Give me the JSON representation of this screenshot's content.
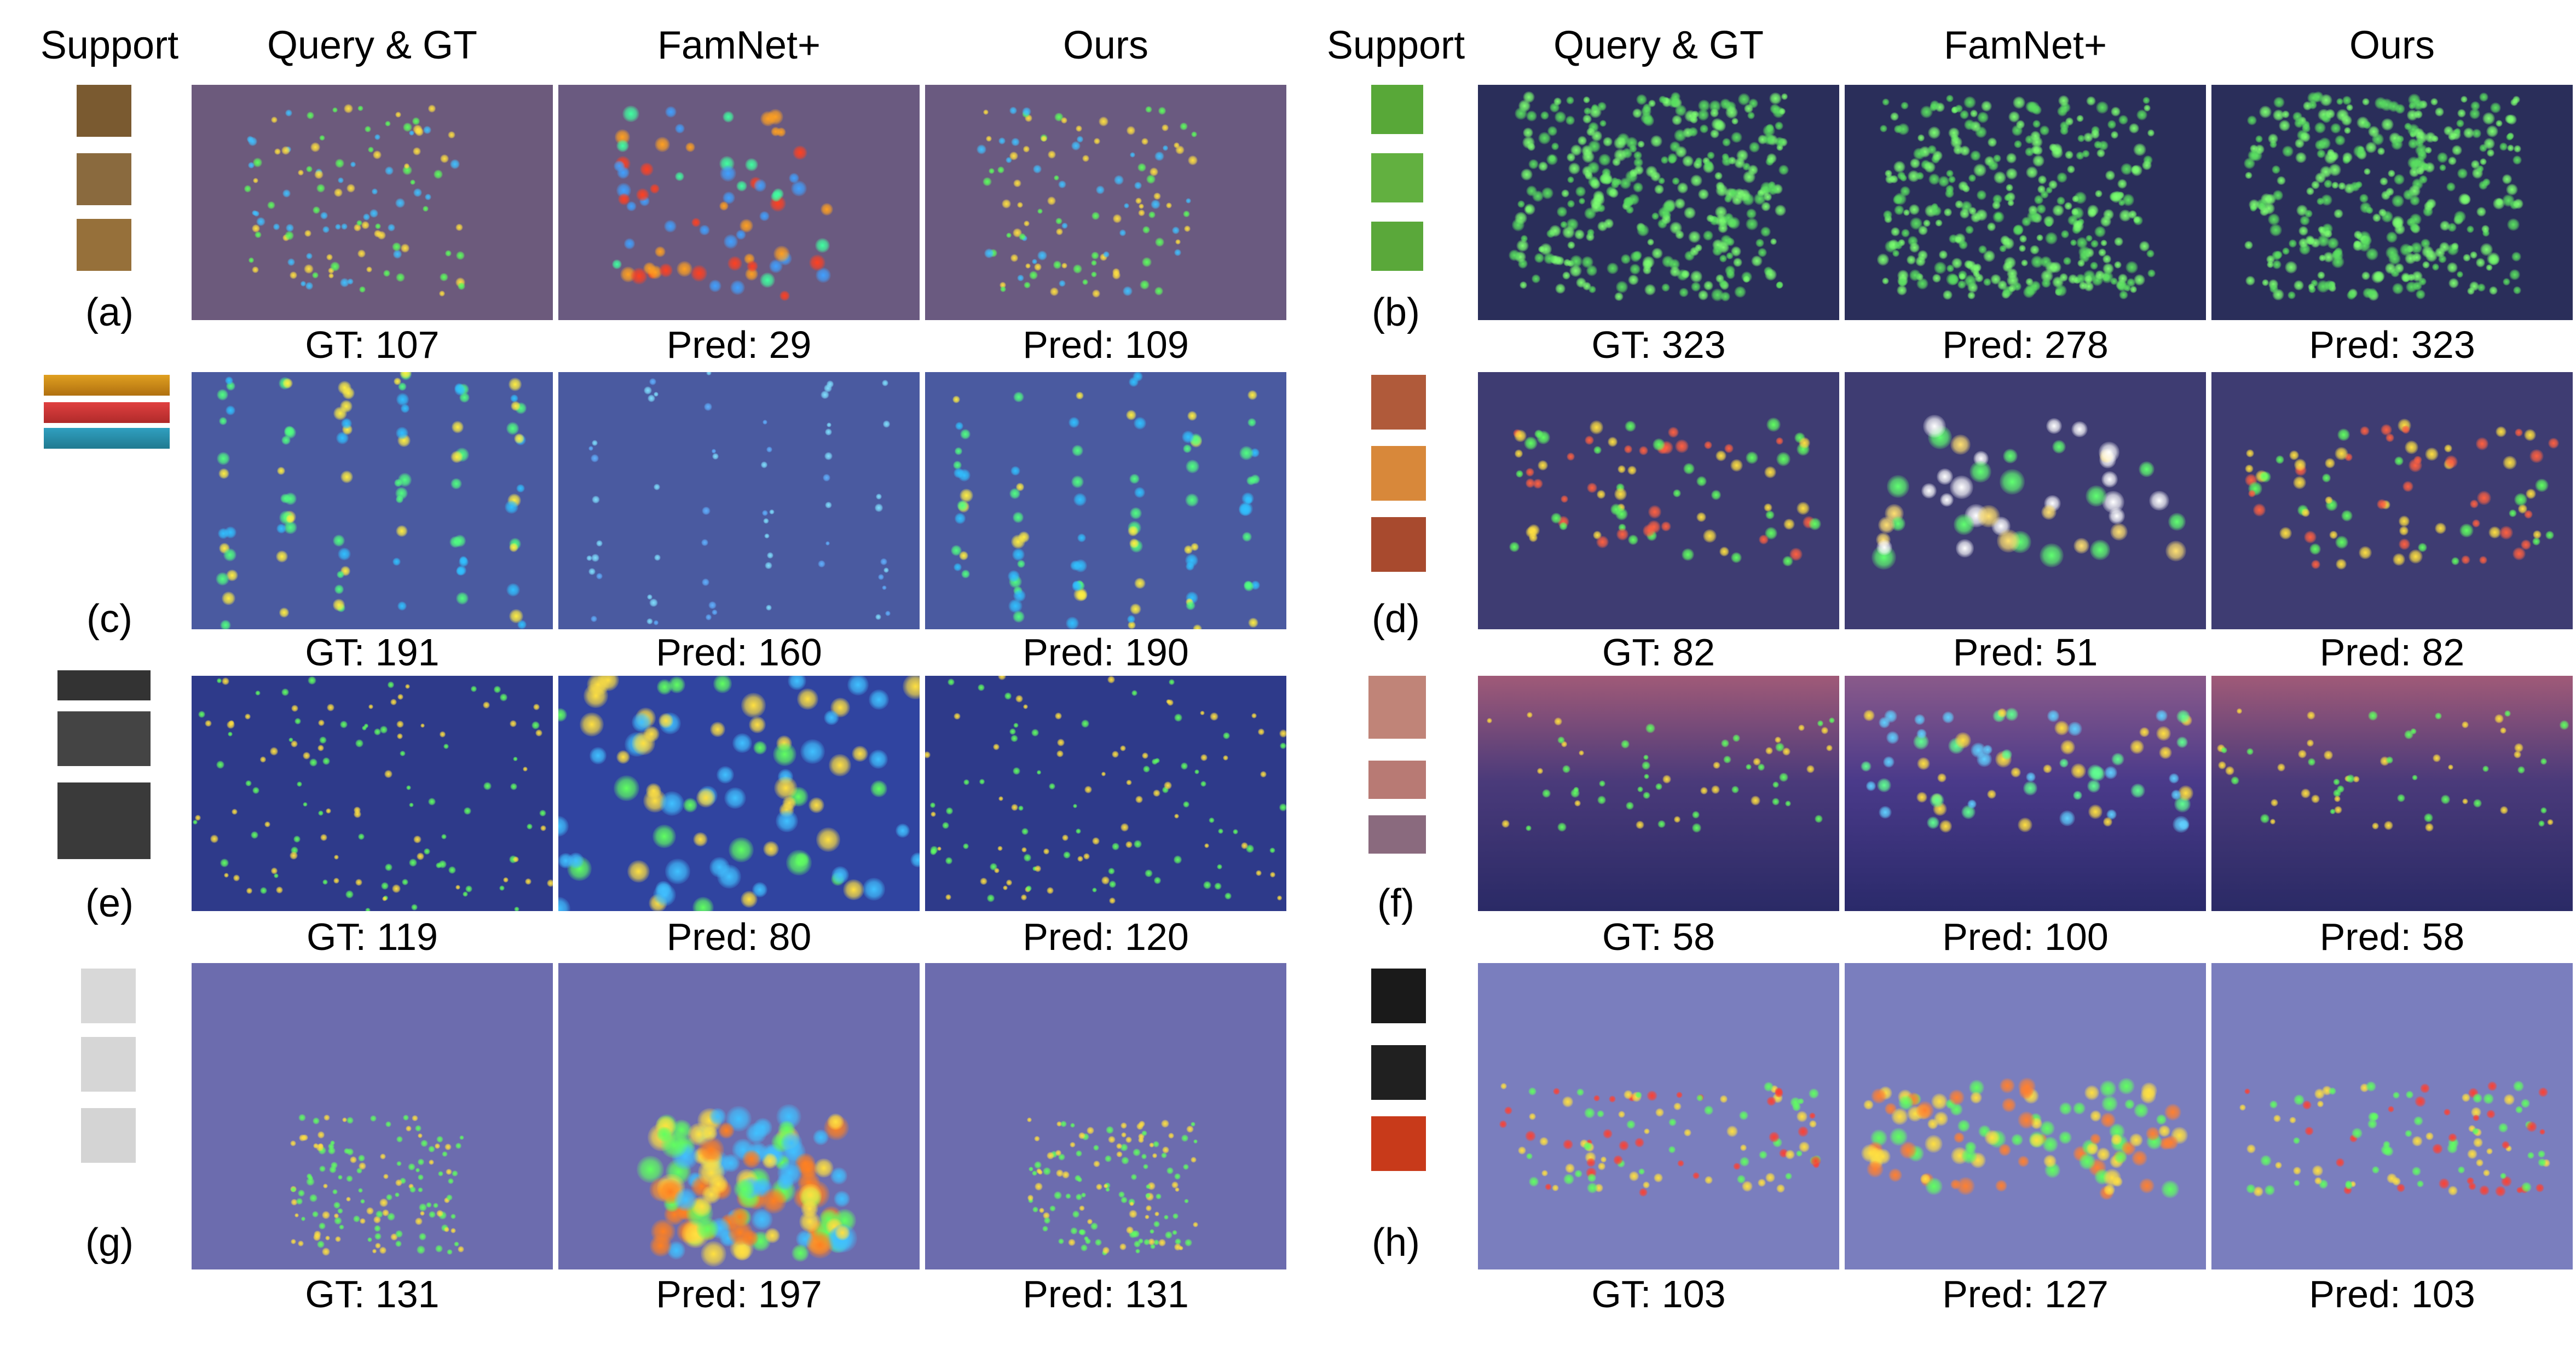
{
  "headers": {
    "left": [
      "Support",
      "Query & GT",
      "FamNet+",
      "Ours"
    ],
    "right": [
      "Support",
      "Query & GT",
      "FamNet+",
      "Ours"
    ]
  },
  "rows": [
    {
      "label": "(a)",
      "gt": "GT: 107",
      "famnet": "Pred: 29",
      "ours": "Pred: 109"
    },
    {
      "label": "(b)",
      "gt": "GT: 323",
      "famnet": "Pred: 278",
      "ours": "Pred: 323"
    },
    {
      "label": "(c)",
      "gt": "GT: 191",
      "famnet": "Pred: 160",
      "ours": "Pred: 190"
    },
    {
      "label": "(d)",
      "gt": "GT: 82",
      "famnet": "Pred: 51",
      "ours": "Pred: 82"
    },
    {
      "label": "(e)",
      "gt": "GT: 119",
      "famnet": "Pred: 80",
      "ours": "Pred: 120"
    },
    {
      "label": "(f)",
      "gt": "GT: 58",
      "famnet": "Pred: 100",
      "ours": "Pred: 58"
    },
    {
      "label": "(g)",
      "gt": "GT: 131",
      "famnet": "Pred: 197",
      "ours": "Pred: 131"
    },
    {
      "label": "(h)",
      "gt": "GT: 103",
      "famnet": "Pred: 127",
      "ours": "Pred: 103"
    }
  ]
}
